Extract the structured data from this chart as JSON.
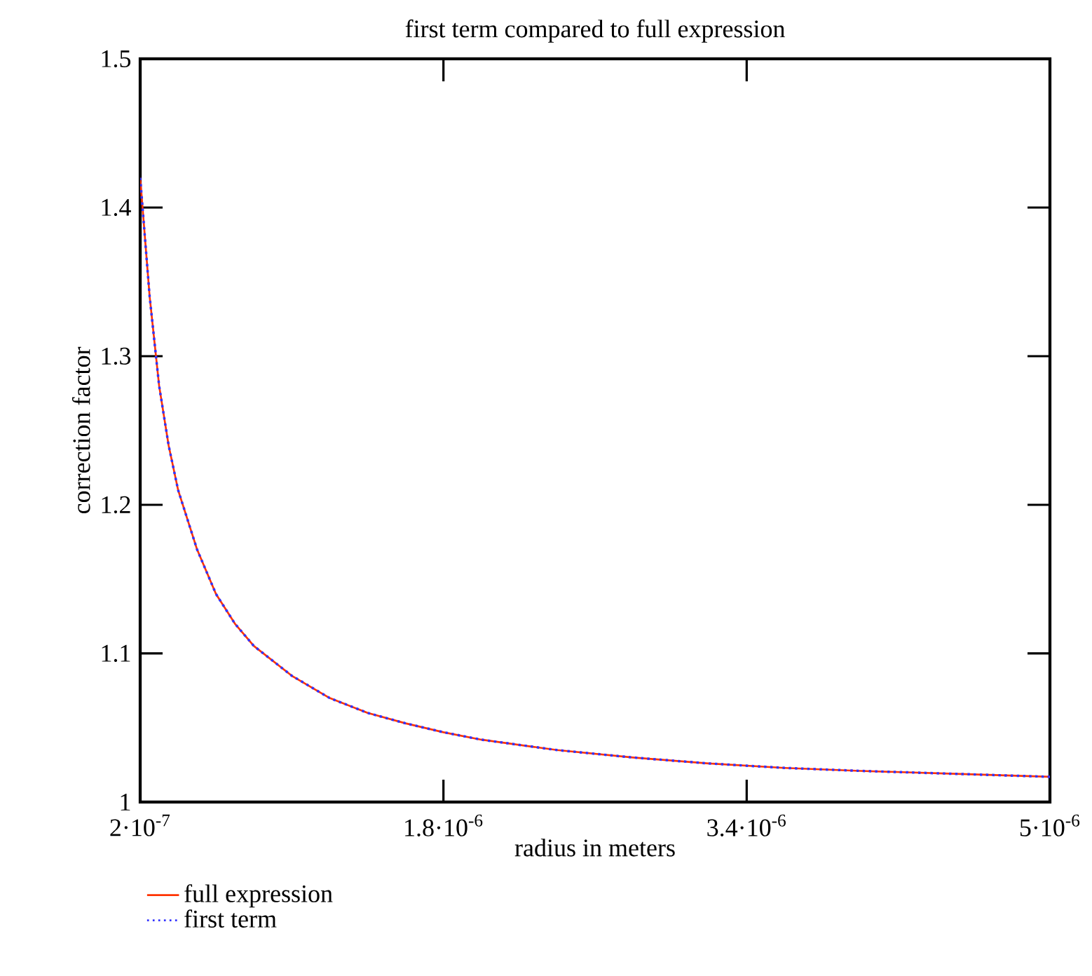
{
  "chart_data": {
    "type": "line",
    "title": "first term compared to full expression",
    "xlabel": "radius in meters",
    "ylabel": "correction factor",
    "x": [
      2e-07,
      2.5e-07,
      3e-07,
      3.5e-07,
      4e-07,
      5e-07,
      6e-07,
      7e-07,
      8e-07,
      1e-06,
      1.2e-06,
      1.4e-06,
      1.6e-06,
      1.8e-06,
      2e-06,
      2.4e-06,
      2.8e-06,
      3.2e-06,
      3.6e-06,
      4e-06,
      4.5e-06,
      5e-06
    ],
    "series": [
      {
        "name": "full expression",
        "color": "#ff3300",
        "line_style": "solid",
        "values": [
          1.42,
          1.34,
          1.28,
          1.24,
          1.21,
          1.17,
          1.14,
          1.12,
          1.105,
          1.085,
          1.07,
          1.06,
          1.053,
          1.047,
          1.042,
          1.035,
          1.03,
          1.026,
          1.023,
          1.021,
          1.019,
          1.017
        ]
      },
      {
        "name": "first term",
        "color": "#3333ff",
        "line_style": "dotted",
        "values": [
          1.42,
          1.34,
          1.28,
          1.24,
          1.21,
          1.17,
          1.14,
          1.12,
          1.105,
          1.085,
          1.07,
          1.06,
          1.053,
          1.047,
          1.042,
          1.035,
          1.03,
          1.026,
          1.023,
          1.021,
          1.019,
          1.017
        ]
      }
    ],
    "xlim": [
      2e-07,
      5e-06
    ],
    "ylim": [
      1,
      1.5
    ],
    "xticks": [
      {
        "value": 2e-07,
        "label": "2·10$^{-7}$"
      },
      {
        "value": 1.8e-06,
        "label": "1.8·10$^{-6}$"
      },
      {
        "value": 3.4e-06,
        "label": "3.4·10$^{-6}$"
      },
      {
        "value": 5e-06,
        "label": "5·10$^{-6}$"
      }
    ],
    "yticks": [
      1,
      1.1,
      1.2,
      1.3,
      1.4,
      1.5
    ],
    "legend": "bottom left",
    "grid": false,
    "marker": "none"
  }
}
